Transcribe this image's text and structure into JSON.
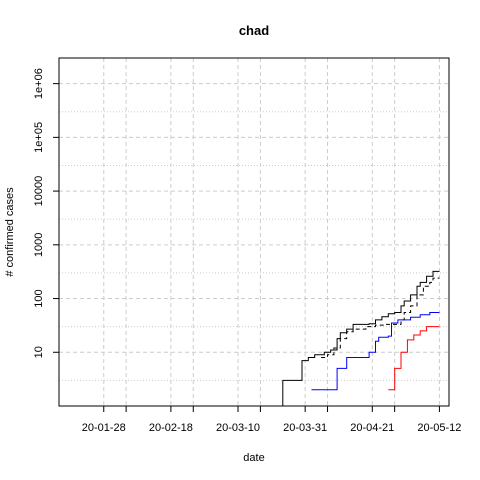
{
  "chart_data": {
    "type": "line",
    "title": "chad",
    "xlabel": "date",
    "ylabel": "# confirmed cases",
    "x_scale": "date",
    "y_scale": "log",
    "xlim": [
      "2020-01-14",
      "2020-05-15"
    ],
    "ylim": [
      1,
      3000000
    ],
    "x_ticks": [
      {
        "date": "2020-01-28",
        "label": "20-01-28"
      },
      {
        "date": "2020-02-18",
        "label": "20-02-18"
      },
      {
        "date": "2020-03-10",
        "label": "20-03-10"
      },
      {
        "date": "2020-03-31",
        "label": "20-03-31"
      },
      {
        "date": "2020-04-21",
        "label": "20-04-21"
      },
      {
        "date": "2020-05-12",
        "label": "20-05-12"
      }
    ],
    "x_minor_ticks": [
      "2020-02-04",
      "2020-02-25",
      "2020-03-17",
      "2020-04-07",
      "2020-04-28"
    ],
    "y_ticks": [
      {
        "value": 10,
        "label": "10"
      },
      {
        "value": 100,
        "label": "100"
      },
      {
        "value": 1000,
        "label": "1000"
      },
      {
        "value": 10000,
        "label": "10000"
      },
      {
        "value": 100000,
        "label": "1e+05"
      },
      {
        "value": 1000000,
        "label": "1e+06"
      }
    ],
    "grid": true,
    "series": [
      {
        "color": "#000000",
        "dash": "solid",
        "step": true,
        "points": [
          [
            "2020-03-19",
            1
          ],
          [
            "2020-03-24",
            3
          ],
          [
            "2020-03-30",
            7
          ],
          [
            "2020-04-01",
            8
          ],
          [
            "2020-04-03",
            9
          ],
          [
            "2020-04-06",
            10
          ],
          [
            "2020-04-08",
            11
          ],
          [
            "2020-04-10",
            18
          ],
          [
            "2020-04-11",
            23
          ],
          [
            "2020-04-13",
            27
          ],
          [
            "2020-04-15",
            33
          ],
          [
            "2020-04-20",
            34
          ],
          [
            "2020-04-22",
            40
          ],
          [
            "2020-04-24",
            46
          ],
          [
            "2020-04-26",
            52
          ],
          [
            "2020-04-28",
            55
          ],
          [
            "2020-04-30",
            73
          ],
          [
            "2020-05-01",
            90
          ],
          [
            "2020-05-03",
            117
          ],
          [
            "2020-05-05",
            170
          ],
          [
            "2020-05-06",
            200
          ],
          [
            "2020-05-08",
            260
          ],
          [
            "2020-05-10",
            320
          ],
          [
            "2020-05-12",
            320
          ]
        ]
      },
      {
        "color": "#000000",
        "dash": "dashed",
        "step": true,
        "points": [
          [
            "2020-04-05",
            8
          ],
          [
            "2020-04-07",
            9
          ],
          [
            "2020-04-09",
            12
          ],
          [
            "2020-04-11",
            18
          ],
          [
            "2020-04-13",
            24
          ],
          [
            "2020-04-15",
            27
          ],
          [
            "2020-04-19",
            30
          ],
          [
            "2020-04-22",
            32
          ],
          [
            "2020-04-25",
            33
          ],
          [
            "2020-04-28",
            33
          ],
          [
            "2020-04-30",
            40
          ],
          [
            "2020-05-01",
            55
          ],
          [
            "2020-05-03",
            73
          ],
          [
            "2020-05-05",
            117
          ],
          [
            "2020-05-07",
            170
          ],
          [
            "2020-05-09",
            200
          ],
          [
            "2020-05-10",
            240
          ],
          [
            "2020-05-12",
            240
          ]
        ]
      },
      {
        "color": "#0000ff",
        "dash": "solid",
        "step": true,
        "points": [
          [
            "2020-04-02",
            2
          ],
          [
            "2020-04-10",
            5
          ],
          [
            "2020-04-13",
            8
          ],
          [
            "2020-04-20",
            10
          ],
          [
            "2020-04-22",
            16
          ],
          [
            "2020-04-23",
            19
          ],
          [
            "2020-04-26",
            20
          ],
          [
            "2020-04-27",
            35
          ],
          [
            "2020-04-29",
            40
          ],
          [
            "2020-05-03",
            45
          ],
          [
            "2020-05-06",
            50
          ],
          [
            "2020-05-09",
            55
          ],
          [
            "2020-05-12",
            55
          ]
        ]
      },
      {
        "color": "#ff0000",
        "dash": "solid",
        "step": true,
        "points": [
          [
            "2020-04-26",
            2
          ],
          [
            "2020-04-28",
            5
          ],
          [
            "2020-04-30",
            10
          ],
          [
            "2020-05-02",
            17
          ],
          [
            "2020-05-04",
            21
          ],
          [
            "2020-05-06",
            25
          ],
          [
            "2020-05-08",
            30
          ],
          [
            "2020-05-12",
            30
          ]
        ]
      }
    ]
  }
}
